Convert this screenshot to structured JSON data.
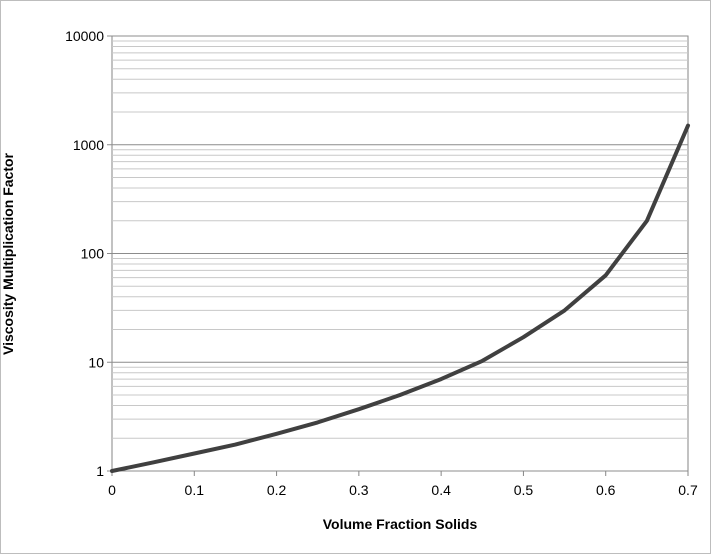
{
  "chart_data": {
    "type": "line",
    "title": "",
    "xlabel": "Volume Fraction Solids",
    "ylabel": "Viscosity Multiplication Factor",
    "xlim": [
      0,
      0.7
    ],
    "ylim": [
      1,
      10000
    ],
    "yscale": "log",
    "grid": true,
    "legend": "none",
    "line_color": "#404040",
    "x_ticks": [
      "0",
      "0.1",
      "0.2",
      "0.3",
      "0.4",
      "0.5",
      "0.6",
      "0.7"
    ],
    "y_ticks": [
      "1",
      "10",
      "100",
      "1000",
      "10000"
    ],
    "series": [
      {
        "x": [
          0,
          0.05,
          0.1,
          0.15,
          0.2,
          0.25,
          0.3,
          0.35,
          0.4,
          0.45,
          0.5,
          0.55,
          0.6,
          0.65,
          0.7
        ],
        "y": [
          1.0,
          1.2,
          1.45,
          1.75,
          2.2,
          2.8,
          3.7,
          5.0,
          7.0,
          10.3,
          17,
          30,
          63,
          200,
          1500
        ]
      }
    ]
  }
}
